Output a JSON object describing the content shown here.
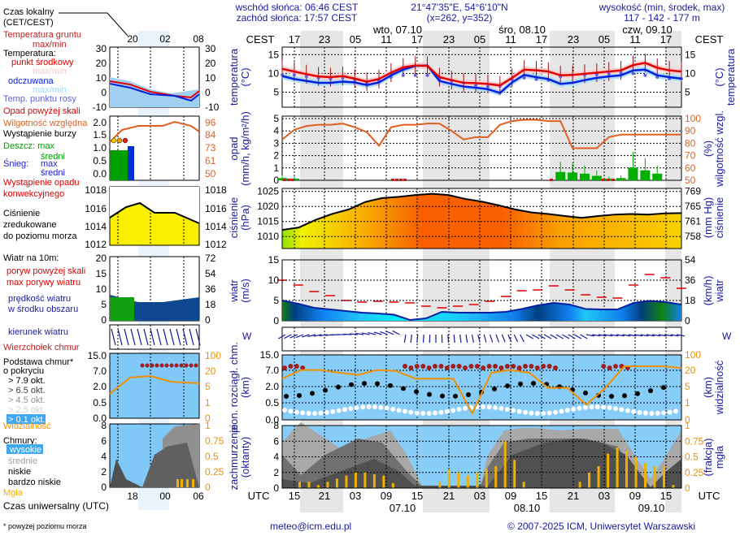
{
  "header": {
    "sunrise": "wschód słońca: 06:46 CEST",
    "sunset": "zachód słońca: 17:57 CEST",
    "coords": "21°47'35\"E, 54°6'10\"N",
    "grid": "(x=262,  y=352)",
    "elevation_title": "wysokość (min, środek, max)",
    "elevation_values": "117 - 142 - 177 m"
  },
  "footer": {
    "email": "meteo@icm.edu.pl",
    "copyright": "© 2007-2025 ICM, Uniwersytet Warszawski",
    "footnote": "* powyżej poziomu morza"
  },
  "legend": {
    "local_time": "Czas lokalny",
    "local_time_sub": "(CET/CEST)",
    "local_ticks": [
      "20",
      "02",
      "08"
    ],
    "utc_ticks": [
      "18",
      "00",
      "06"
    ],
    "utc_label": "Czas uniwersalny (UTC)",
    "ground_temp": "Temperatura gruntu",
    "ground_temp_sub": "max/min",
    "temperature": "Temperatura:",
    "temp_mid": "punkt środkowy",
    "temp_maxmin": "max/min",
    "feels": "odczuwana",
    "feels_maxmin": "max/min",
    "dewpoint": "Temp. punktu rosy",
    "precip_over": "Opad powyżej skali",
    "humidity": "Wilgotność względna",
    "storm": "Wystąpienie burzy",
    "rain_max": "Deszcz: max",
    "rain_avg": "średni",
    "snow": "Śnieg:",
    "snow_max": "max",
    "snow_avg": "średni",
    "convective": "Wystąpienie opadu",
    "convective_sub": "konwekcyjnego",
    "pressure": "Ciśnienie",
    "pressure_sub1": "zredukowane",
    "pressure_sub2": "do poziomu morza",
    "wind10": "Wiatr na 10m:",
    "gust_over": "poryw powyżej skali",
    "gust_max": "max porywy wiatru",
    "wind_speed": "prędkość wiatru",
    "wind_speed_sub": "w środku obszaru",
    "wind_dir": "kierunek wiatru",
    "cloud_top": "Wierzchołek chmur",
    "cloud_base": "Podstawa chmur*",
    "cloud_base_sub": "o pokryciu",
    "okt": [
      "> 7.9 okt.",
      "> 6.5 okt.",
      "> 4.5 okt.",
      "> 2.5 okt.",
      "> 0.1 okt."
    ],
    "visibility": "Widzialność",
    "clouds": "Chmury:",
    "cl_high": "wysokie",
    "cl_mid": "średnie",
    "cl_low": "niskie",
    "cl_vlow": "bardzo niskie",
    "fog": "Mgła",
    "axes": {
      "temp": [
        "30",
        "20",
        "10",
        "0",
        "-10"
      ],
      "precip": [
        "2.0",
        "1.5",
        "1.0",
        "0.5",
        "0.0"
      ],
      "hum": [
        "96",
        "84",
        "73",
        "61",
        "50"
      ],
      "pres": [
        "1018",
        "1016",
        "1014",
        "1012"
      ],
      "wind_l": [
        "20",
        "15",
        "10",
        "5",
        "0"
      ],
      "wind_r": [
        "72",
        "54",
        "36",
        "18",
        "0"
      ],
      "cb_l": [
        "15.0",
        "7.0",
        "2.0",
        "0.5",
        "0.0"
      ],
      "cb_r": [
        "100",
        "20",
        "5",
        "1",
        "0"
      ],
      "cl_l": [
        "8",
        "6",
        "4",
        "2",
        "0"
      ],
      "cl_r": [
        "1",
        "0.75",
        "0.5",
        "0.25",
        "0"
      ]
    }
  },
  "main": {
    "tz_local": "CEST",
    "tz_utc": "UTC",
    "days": [
      "wto, 07.10",
      "śro, 08.10",
      "czw, 09.10"
    ],
    "local_ticks": [
      "17",
      "23",
      "05",
      "11",
      "17",
      "23",
      "05",
      "11",
      "17",
      "23",
      "05",
      "11",
      "17"
    ],
    "utc_ticks": [
      "15",
      "21",
      "03",
      "09",
      "15",
      "21",
      "03",
      "09",
      "15",
      "21",
      "03",
      "09",
      "15"
    ],
    "utc_dates": [
      "07.10",
      "08.10",
      "09.10"
    ],
    "panels": {
      "temp": {
        "label": "temperatura",
        "unit": "(°C)",
        "ticks": [
          "15",
          "10",
          "5"
        ]
      },
      "precip": {
        "label": "opad",
        "unit": "(mm/h, kg/m²/h)",
        "ticks": [
          "5",
          "4",
          "3",
          "2",
          "1",
          "0"
        ],
        "r_label": "wilgotność wzgl.",
        "r_unit": "(%)",
        "r_ticks": [
          "100",
          "90",
          "80",
          "70",
          "60",
          "50"
        ]
      },
      "pressure": {
        "label": "ciśnienie",
        "unit": "(hPa)",
        "ticks": [
          "1025",
          "1020",
          "1015",
          "1010"
        ],
        "r_label": "ciśnienie",
        "r_unit": "(mm Hg)",
        "r_ticks": [
          "769",
          "765",
          "761",
          "758"
        ]
      },
      "wind": {
        "label": "wiatr",
        "unit": "(m/s)",
        "ticks": [
          "15",
          "10",
          "5",
          "0"
        ],
        "r_label": "wiatr",
        "r_unit": "(km/h)",
        "r_ticks": [
          "54",
          "36",
          "18",
          "0"
        ]
      },
      "winddir": {
        "compass": "WNSE"
      },
      "cloudbase": {
        "label": "pion. rozciągł. chm.",
        "unit": "(km)",
        "ticks": [
          "15.0",
          "7.0",
          "2.0",
          "0.5",
          "0.0"
        ],
        "r_label": "widzialność",
        "r_unit": "(km)",
        "r_ticks": [
          "100",
          "20",
          "5",
          "1",
          "0"
        ]
      },
      "clouds": {
        "label": "zachmurzenie",
        "unit": "(oktanty)",
        "ticks": [
          "8",
          "6",
          "4",
          "2",
          "0"
        ],
        "r_label": "mgła",
        "r_unit": "(frakcja)",
        "r_ticks": [
          "1",
          "0.75",
          "0.5",
          "0.25",
          "0"
        ]
      }
    }
  },
  "chart_data": [
    {
      "type": "line",
      "title": "temperatura (°C)",
      "x": "hours since 15 UTC 06.10, step 3h",
      "series": [
        {
          "name": "temperatura punkt środkowy",
          "color": "#e00000",
          "values": [
            11.2,
            10.5,
            9.8,
            9.2,
            9.0,
            9.3,
            8.6,
            7.8,
            8.5,
            10.2,
            11.6,
            12.1,
            12.0,
            9.0,
            8.2,
            7.5,
            7.4,
            7.2,
            6.8,
            8.8,
            11.0,
            10.8,
            10.5,
            9.5,
            9.6,
            9.9,
            10.2,
            10.5,
            10.8,
            12.2,
            12.8,
            11.5,
            10.8,
            10.5
          ]
        },
        {
          "name": "temperatura odczuwana",
          "color": "#0020e0",
          "values": [
            9.3,
            8.5,
            8.0,
            7.5,
            7.5,
            7.8,
            7.6,
            6.9,
            7.6,
            9.5,
            11.0,
            12.0,
            12.1,
            8.0,
            7.2,
            6.5,
            6.2,
            5.8,
            4.8,
            7.6,
            9.6,
            9.0,
            8.5,
            7.2,
            7.5,
            8.2,
            8.8,
            9.2,
            9.5,
            10.8,
            11.0,
            9.5,
            9.0,
            8.6
          ]
        },
        {
          "name": "temp. punktu rosy",
          "color": "#6060e0",
          "values": [
            9.6,
            9.6,
            9.2,
            8.8,
            8.6,
            8.8,
            8.2,
            7.4,
            8.0,
            9.0,
            9.5,
            9.5,
            9.5,
            8.6,
            8.0,
            7.5,
            6.8,
            6.5,
            6.6,
            8.4,
            8.8,
            8.4,
            8.2,
            9.2,
            9.6,
            9.6,
            9.7,
            9.9,
            10.2,
            10.0,
            9.5,
            9.0,
            8.6,
            8.6
          ]
        }
      ],
      "ylim": [
        1,
        17
      ]
    },
    {
      "type": "bar",
      "title": "opad (mm/h) / wilgotność względna (%)",
      "series": [
        {
          "name": "opad max",
          "color": "#00b000",
          "values": [
            0.4,
            0.3,
            0,
            0,
            0,
            0,
            0,
            0,
            0,
            0,
            0,
            0,
            0,
            0,
            0,
            0,
            0,
            0,
            0,
            0,
            0,
            0,
            0,
            1.5,
            1.4,
            1.2,
            0.8,
            0.3,
            0.4,
            2.3,
            1.8,
            1.2,
            0,
            0
          ]
        },
        {
          "name": "wilgotność względna",
          "color": "#e05020",
          "values": [
            83,
            91,
            94,
            95,
            95,
            96,
            93,
            89,
            78,
            93,
            95,
            95,
            96,
            96,
            90,
            83,
            85,
            85,
            95,
            98,
            99,
            99,
            98,
            98,
            76,
            76,
            76,
            85,
            87,
            87,
            87,
            87,
            87,
            87
          ]
        }
      ],
      "ylim": [
        0,
        5
      ],
      "y2lim": [
        50,
        100
      ]
    },
    {
      "type": "area",
      "title": "ciśnienie (hPa)",
      "values": [
        1012.2,
        1013.0,
        1015.5,
        1017.5,
        1019.0,
        1021.5,
        1022.8,
        1023.2,
        1023.8,
        1024.2,
        1023.8,
        1022.5,
        1021.6,
        1020.4,
        1019.0,
        1018.0,
        1017.5,
        1016.8,
        1016.2,
        1016.8,
        1017.3,
        1017.5,
        1017.3,
        1017.7,
        1017.8
      ],
      "ylim": [
        1006,
        1026
      ]
    },
    {
      "type": "line",
      "title": "wiatr (m/s)",
      "series": [
        {
          "name": "prędkość wiatru",
          "color": "#0040c0",
          "values": [
            5.0,
            4.2,
            3.2,
            2.8,
            2.4,
            2.0,
            1.8,
            1.5,
            0.2,
            0.6,
            2.2,
            2.0,
            2.0,
            2.0,
            2.2,
            2.9,
            3.8,
            4.4,
            4.0,
            2.9,
            2.8,
            2.8,
            4.4,
            4.9,
            4.6,
            4.0
          ]
        },
        {
          "name": "max porywy wiatru",
          "color": "#e00000",
          "values": [
            10.0,
            8.8,
            7.2,
            6.2,
            5.0,
            4.6,
            4.8,
            4.6,
            4.4,
            3.6,
            3.2,
            3.6,
            4.0,
            4.8,
            6.0,
            7.4,
            7.6,
            8.6,
            7.6,
            6.4,
            5.8,
            5.6,
            8.8,
            11.4,
            10.6,
            8.0
          ]
        }
      ],
      "ylim": [
        0,
        15
      ]
    },
    {
      "type": "scatter",
      "title": "pion. rozciągł. chm. (km) / widzialność (km)",
      "series": [
        {
          "name": "wierzchołek chmur",
          "color": "#a02020",
          "values": [
            8.2,
            3.0,
            3.0,
            3.0,
            3.0,
            9.5,
            9.0,
            9.5,
            10.0,
            10.0,
            10.0,
            10.0,
            10.0,
            10.0,
            9.5,
            1.8,
            2.0
          ]
        },
        {
          "name": "widzialność",
          "color": "#f09000",
          "values": [
            8,
            20,
            20,
            15,
            12,
            20,
            18,
            8,
            8,
            8,
            0.2,
            15,
            20,
            15,
            3,
            3,
            0.5,
            3,
            30,
            30,
            30,
            25
          ]
        }
      ]
    },
    {
      "type": "area",
      "title": "zachmurzenie (oktanty) / mgła (frakcja)",
      "series": [
        {
          "name": "mgła",
          "color": "#f0b000",
          "values": [
            0,
            0.1,
            0.1,
            0.05,
            0.1,
            0.15,
            0.2,
            0.25,
            0.25,
            0.22,
            0.2,
            0.08,
            0,
            0,
            0,
            0,
            0.1,
            0.3,
            0.25,
            0.2,
            0.25,
            0.3,
            0.35,
            0.75,
            0.45,
            0.1,
            0,
            0,
            0,
            0,
            0,
            0.1,
            0.25,
            0.35,
            0.55,
            0.65,
            0.6,
            0.5,
            0.4,
            0.35,
            0.35,
            0.05
          ]
        }
      ],
      "ylim": [
        0,
        8
      ],
      "y2lim": [
        0,
        1
      ]
    }
  ]
}
